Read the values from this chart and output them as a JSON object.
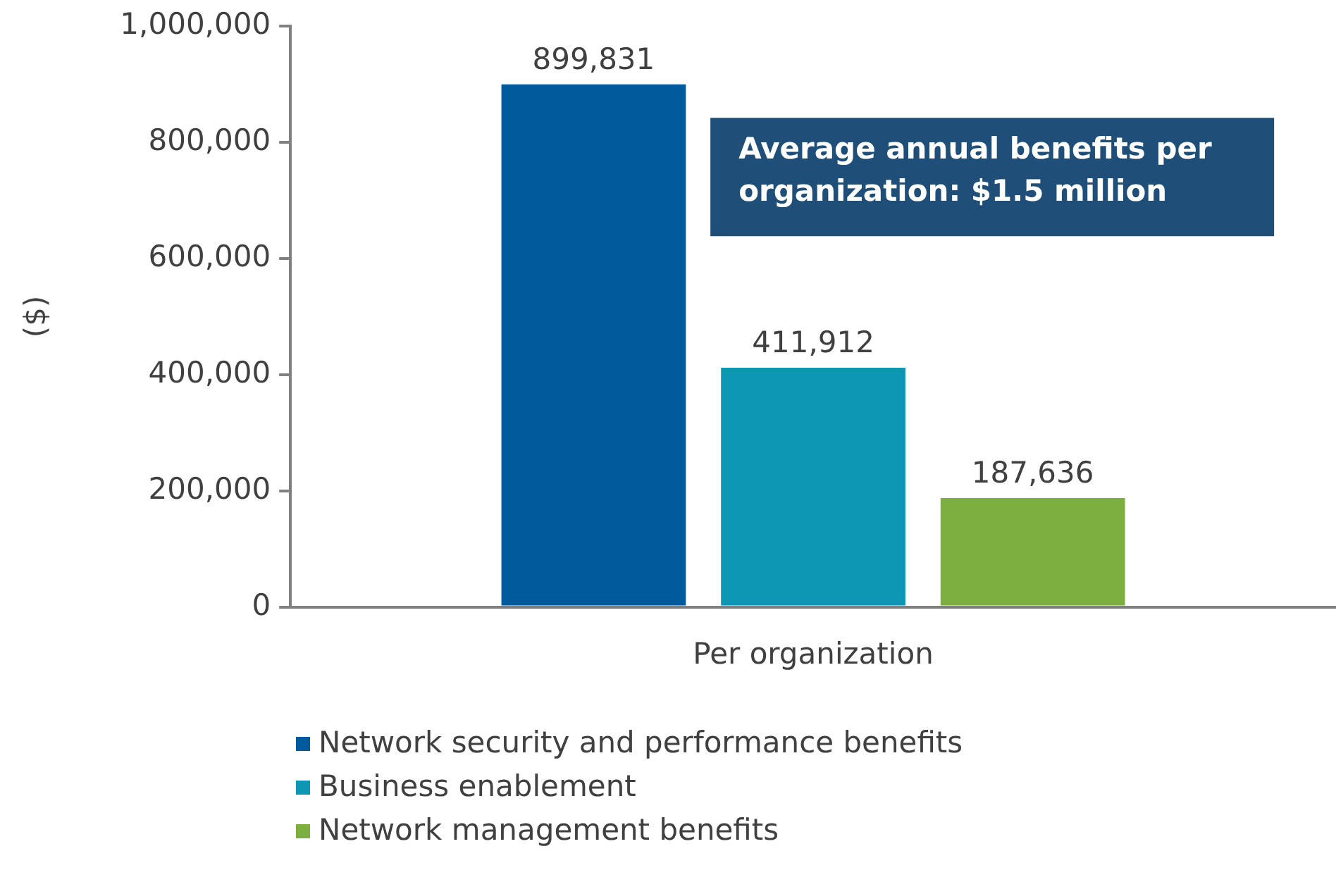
{
  "chart_data": {
    "type": "bar",
    "ylabel": "($)",
    "categories": [
      "Per organization"
    ],
    "series": [
      {
        "name": "Network security and performance benefits",
        "color": "#005a9c",
        "values": [
          899831
        ],
        "value_labels": [
          "899,831"
        ]
      },
      {
        "name": "Business enablement",
        "color": "#0e97b5",
        "values": [
          411912
        ],
        "value_labels": [
          "411,912"
        ]
      },
      {
        "name": "Network management benefits",
        "color": "#7cae40",
        "values": [
          187636
        ],
        "value_labels": [
          "187,636"
        ]
      }
    ],
    "ylim": [
      0,
      1000000
    ],
    "yticks": [
      0,
      {
        "value": 200000,
        "label": "200,000"
      },
      {
        "value": 400000,
        "label": "400,000"
      },
      {
        "value": 600000,
        "label": "600,000"
      },
      {
        "value": 800000,
        "label": "800,000"
      },
      {
        "value": 1000000,
        "label": "1,000,000"
      }
    ],
    "grid": false,
    "legend": "bottom",
    "annotations": [
      "Average annual benefits per organization: $1.5 million"
    ]
  }
}
